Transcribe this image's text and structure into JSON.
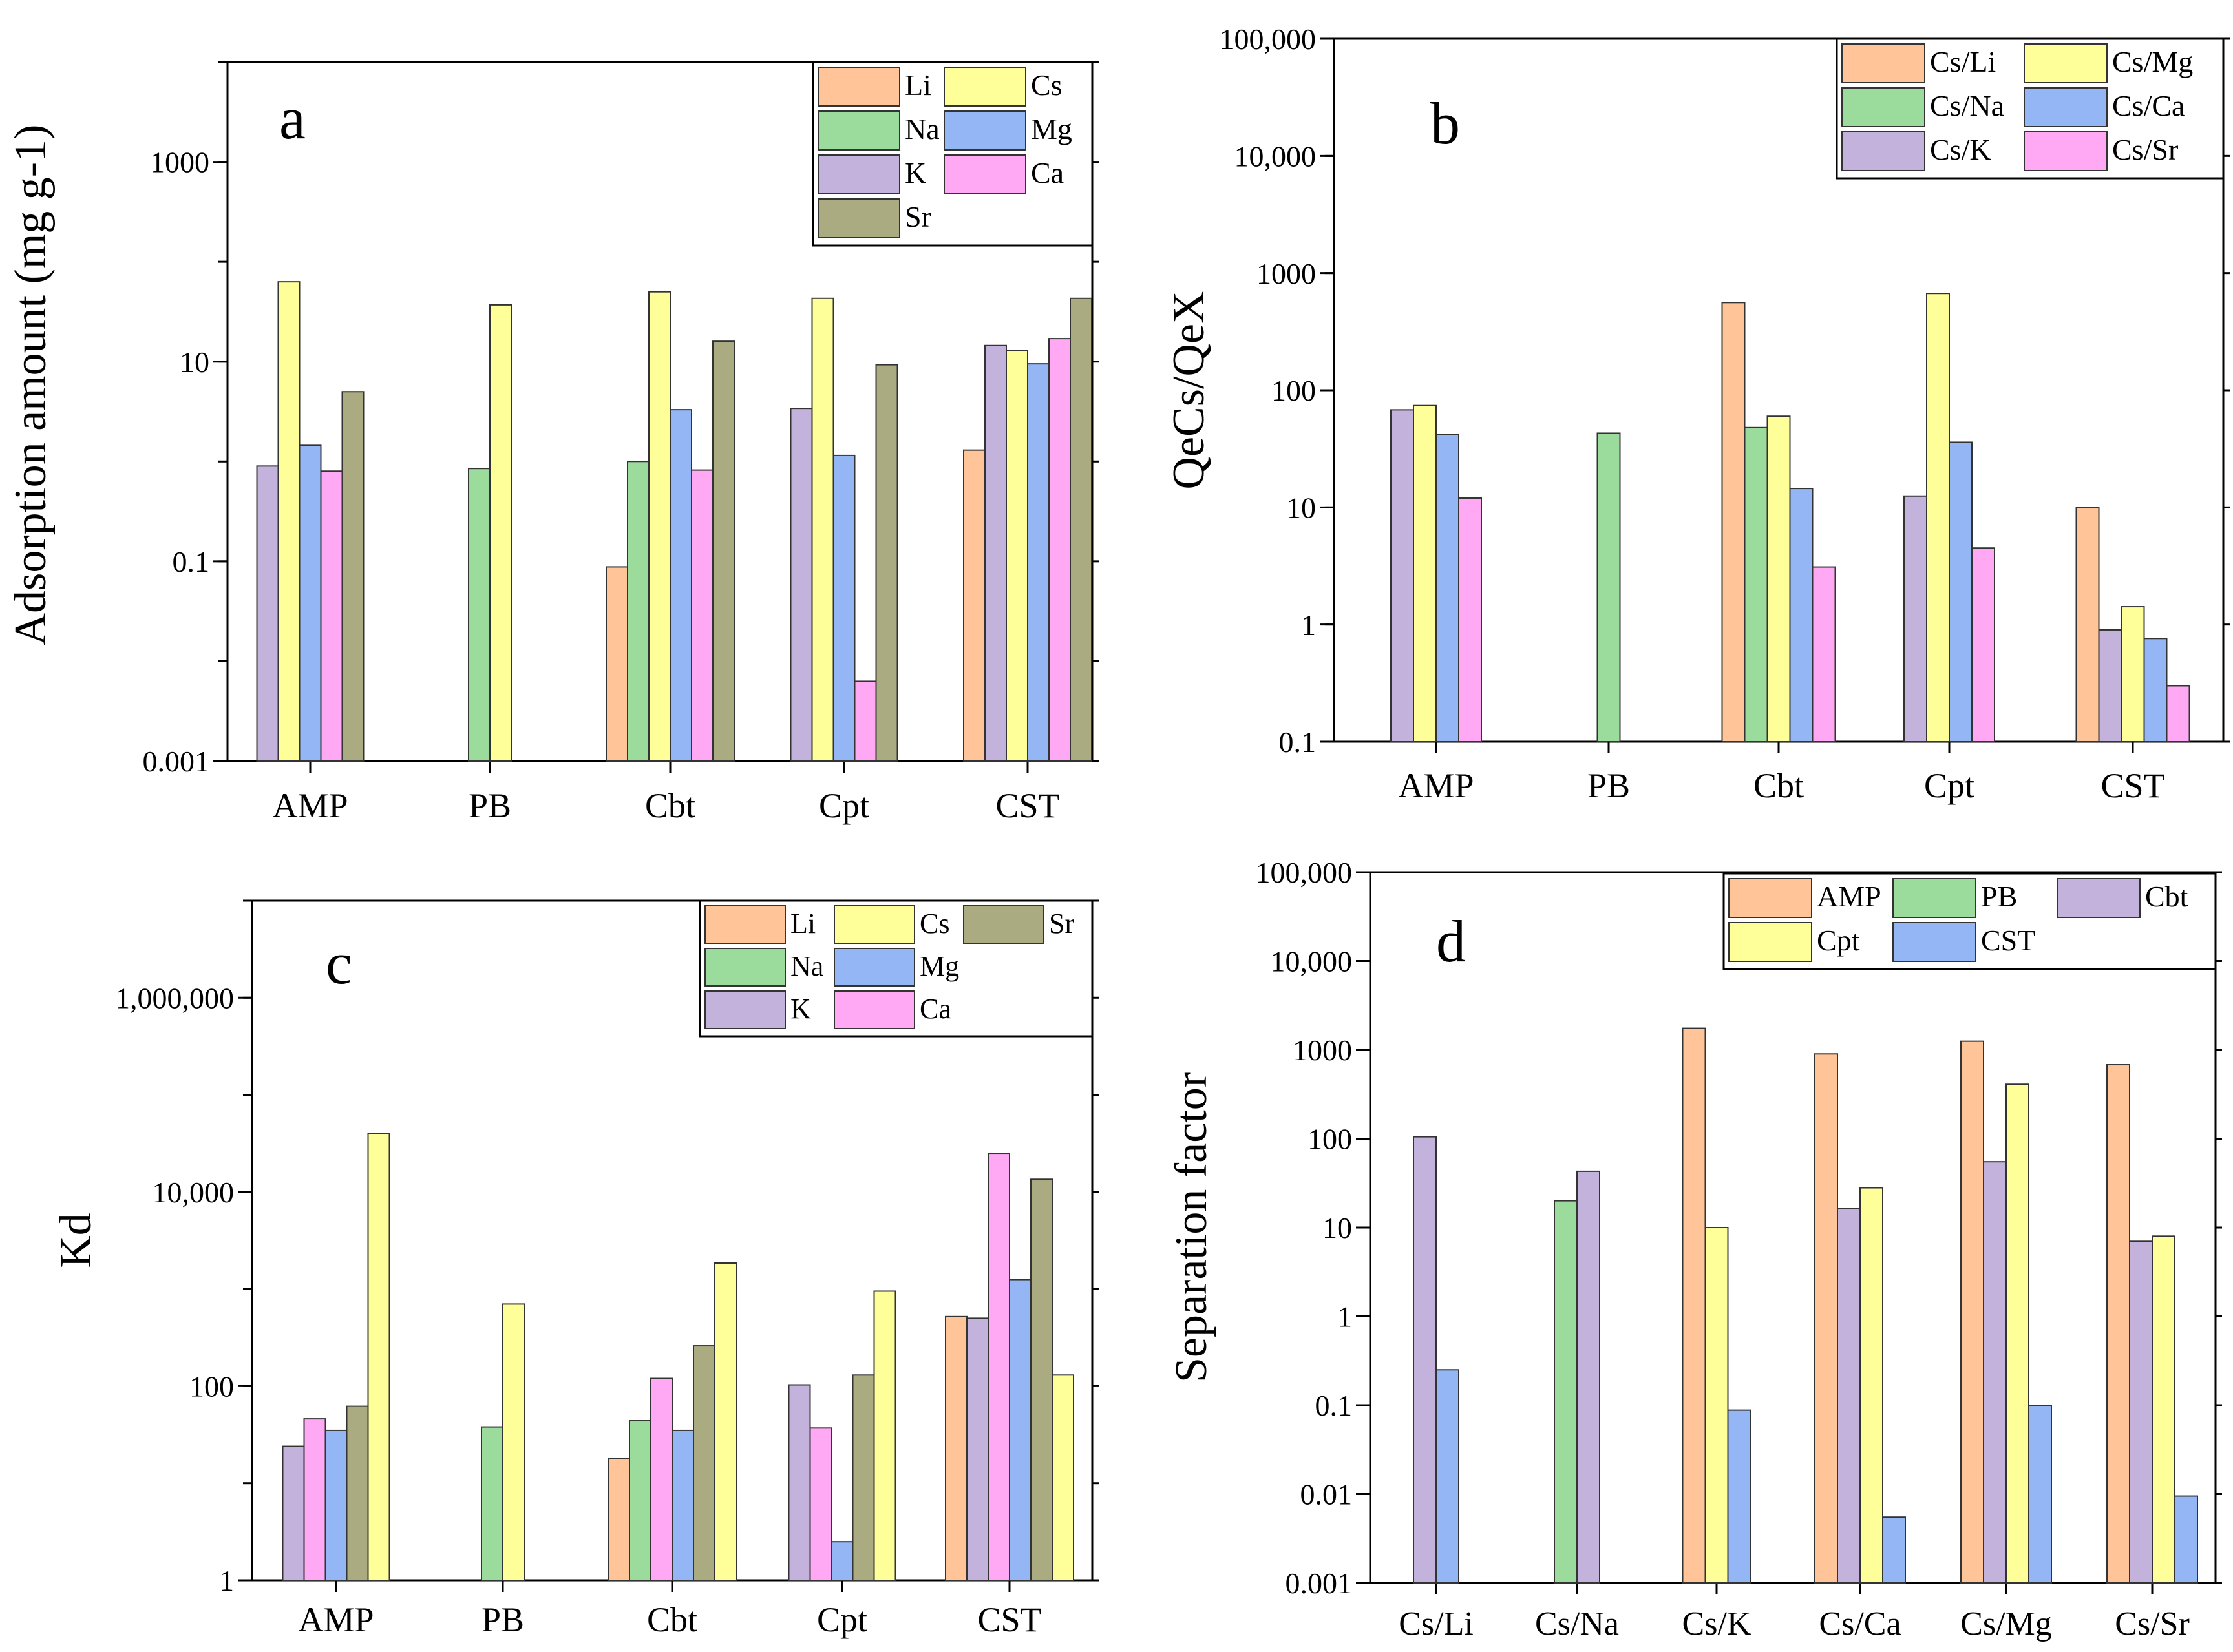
{
  "colors": {
    "Li": "#FFC598",
    "Na": "#9BDB9B",
    "K": "#C3B2DB",
    "Cs": "#FFFF99",
    "Mg": "#94B6F4",
    "Ca": "#FFA8F4",
    "Sr": "#ABAB82",
    "Cs/Li": "#FFC598",
    "Cs/Na": "#9BDB9B",
    "Cs/K": "#C3B2DB",
    "Cs/Mg": "#FFFF99",
    "Cs/Ca": "#94B6F4",
    "Cs/Sr": "#FFA8F4",
    "AMP": "#FFC598",
    "PB": "#9BDB9B",
    "Cbt": "#C3B2DB",
    "Cpt": "#FFFF99",
    "CST": "#94B6F4"
  },
  "chart_data": [
    {
      "id": "a",
      "type": "bar",
      "panel_label": "a",
      "title": "",
      "xlabel": "",
      "ylabel": "Adsorption amount (mg g-1)",
      "yscale": "log",
      "ylim": [
        0.001,
        10000
      ],
      "yticks": [
        {
          "v": 0.001,
          "label": "0.001"
        },
        {
          "v": 0.1,
          "label": "0.1"
        },
        {
          "v": 10,
          "label": "10"
        },
        {
          "v": 1000,
          "label": "1000"
        }
      ],
      "categories": [
        "AMP",
        "PB",
        "Cbt",
        "Cpt",
        "CST"
      ],
      "series": [
        {
          "name": "Li",
          "values": [
            null,
            null,
            0.088,
            null,
            1.3
          ]
        },
        {
          "name": "Na",
          "values": [
            null,
            0.85,
            1.0,
            null,
            null
          ]
        },
        {
          "name": "K",
          "values": [
            0.9,
            null,
            null,
            3.4,
            14.5
          ]
        },
        {
          "name": "Cs",
          "values": [
            63,
            37,
            50,
            43,
            13
          ]
        },
        {
          "name": "Mg",
          "values": [
            1.45,
            null,
            3.3,
            1.15,
            9.5
          ]
        },
        {
          "name": "Ca",
          "values": [
            0.8,
            null,
            0.82,
            0.0063,
            17
          ]
        },
        {
          "name": "Sr",
          "values": [
            5.0,
            null,
            16,
            9.3,
            43
          ]
        }
      ],
      "legend": {
        "placement": "top-right",
        "cols": 2,
        "entries": [
          [
            {
              "label": "Li",
              "series": "Li"
            },
            {
              "label": "Cs",
              "series": "Cs"
            }
          ],
          [
            {
              "label": "Na",
              "series": "Na"
            },
            {
              "label": "Mg",
              "series": "Mg"
            }
          ],
          [
            {
              "label": "K",
              "series": "K"
            },
            {
              "label": "Ca",
              "series": "Ca"
            }
          ],
          [
            {
              "label": "Sr",
              "series": "Sr"
            }
          ]
        ]
      }
    },
    {
      "id": "b",
      "type": "bar",
      "panel_label": "b",
      "title": "",
      "xlabel": "",
      "ylabel": "QeCs/QeX",
      "yscale": "log",
      "ylim": [
        0.1,
        100000
      ],
      "yticks": [
        {
          "v": 0.1,
          "label": "0.1"
        },
        {
          "v": 1,
          "label": "1"
        },
        {
          "v": 10,
          "label": "10"
        },
        {
          "v": 100,
          "label": "100"
        },
        {
          "v": 1000,
          "label": "1000"
        },
        {
          "v": 10000,
          "label": "10,000"
        },
        {
          "v": 100000,
          "label": "100,000"
        }
      ],
      "categories": [
        "AMP",
        "PB",
        "Cbt",
        "Cpt",
        "CST"
      ],
      "series": [
        {
          "name": "Cs/Li",
          "values": [
            null,
            null,
            560,
            null,
            10
          ]
        },
        {
          "name": "Cs/Na",
          "values": [
            null,
            43,
            48,
            null,
            null
          ]
        },
        {
          "name": "Cs/K",
          "values": [
            68,
            null,
            null,
            12.5,
            0.9
          ]
        },
        {
          "name": "Cs/Mg",
          "values": [
            74,
            null,
            60,
            670,
            1.42
          ]
        },
        {
          "name": "Cs/Ca",
          "values": [
            42,
            null,
            14.5,
            36,
            0.76
          ]
        },
        {
          "name": "Cs/Sr",
          "values": [
            12,
            null,
            3.1,
            4.5,
            0.3
          ]
        }
      ],
      "legend": {
        "placement": "top-right",
        "cols": 2,
        "entries": [
          [
            {
              "label": "Cs/Li",
              "series": "Cs/Li"
            },
            {
              "label": "Cs/Mg",
              "series": "Cs/Mg"
            }
          ],
          [
            {
              "label": "Cs/Na",
              "series": "Cs/Na"
            },
            {
              "label": "Cs/Ca",
              "series": "Cs/Ca"
            }
          ],
          [
            {
              "label": "Cs/K",
              "series": "Cs/K"
            },
            {
              "label": "Cs/Sr",
              "series": "Cs/Sr"
            }
          ]
        ]
      }
    },
    {
      "id": "c",
      "type": "bar",
      "panel_label": "c",
      "title": "",
      "xlabel": "",
      "ylabel": "Kd",
      "yscale": "log",
      "ylim": [
        1,
        10000000
      ],
      "yticks": [
        {
          "v": 1,
          "label": "1"
        },
        {
          "v": 100,
          "label": "100"
        },
        {
          "v": 10000,
          "label": "10,000"
        },
        {
          "v": 1000000,
          "label": "1,000,000"
        }
      ],
      "categories": [
        "AMP",
        "PB",
        "Cbt",
        "Cpt",
        "CST"
      ],
      "series": [
        {
          "name": "Li",
          "values": [
            null,
            null,
            18,
            null,
            520
          ]
        },
        {
          "name": "Na",
          "values": [
            null,
            38,
            44,
            null,
            null
          ]
        },
        {
          "name": "K",
          "values": [
            24,
            null,
            null,
            103,
            500
          ]
        },
        {
          "name": "Ca",
          "values": [
            46,
            null,
            120,
            37,
            25000
          ]
        },
        {
          "name": "Mg",
          "values": [
            35,
            null,
            35,
            2.5,
            1250
          ]
        },
        {
          "name": "Sr",
          "values": [
            62,
            null,
            260,
            130,
            13500
          ]
        },
        {
          "name": "Cs",
          "values": [
            40000,
            700,
            1850,
            950,
            130
          ]
        }
      ],
      "legend": {
        "placement": "top-right",
        "cols": 3,
        "entries": [
          [
            {
              "label": "Li",
              "series": "Li"
            },
            {
              "label": "Cs",
              "series": "Cs"
            },
            {
              "label": "Sr",
              "series": "Sr"
            }
          ],
          [
            {
              "label": "Na",
              "series": "Na"
            },
            {
              "label": "Mg",
              "series": "Mg"
            }
          ],
          [
            {
              "label": "K",
              "series": "K"
            },
            {
              "label": "Ca",
              "series": "Ca"
            }
          ]
        ]
      }
    },
    {
      "id": "d",
      "type": "bar",
      "panel_label": "d",
      "title": "",
      "xlabel": "",
      "ylabel": "Separation factor",
      "yscale": "log",
      "ylim": [
        0.001,
        100000
      ],
      "yticks": [
        {
          "v": 0.001,
          "label": "0.001"
        },
        {
          "v": 0.01,
          "label": "0.01"
        },
        {
          "v": 0.1,
          "label": "0.1"
        },
        {
          "v": 1,
          "label": "1"
        },
        {
          "v": 10,
          "label": "10"
        },
        {
          "v": 100,
          "label": "100"
        },
        {
          "v": 1000,
          "label": "1000"
        },
        {
          "v": 10000,
          "label": "10,000"
        },
        {
          "v": 100000,
          "label": "100,000"
        }
      ],
      "categories": [
        "Cs/Li",
        "Cs/Na",
        "Cs/K",
        "Cs/Ca",
        "Cs/Mg",
        "Cs/Sr"
      ],
      "series": [
        {
          "name": "AMP",
          "values": [
            null,
            null,
            1750,
            900,
            1250,
            680
          ]
        },
        {
          "name": "PB",
          "values": [
            null,
            20,
            null,
            null,
            null,
            null
          ]
        },
        {
          "name": "Cbt",
          "values": [
            105,
            43,
            null,
            16.5,
            55,
            7
          ]
        },
        {
          "name": "Cpt",
          "values": [
            null,
            null,
            10,
            28,
            410,
            8
          ]
        },
        {
          "name": "CST",
          "values": [
            0.25,
            null,
            0.088,
            0.0055,
            0.1,
            0.0095
          ]
        }
      ],
      "legend": {
        "placement": "top-right",
        "cols": 3,
        "entries": [
          [
            {
              "label": "AMP",
              "series": "AMP"
            },
            {
              "label": "PB",
              "series": "PB"
            },
            {
              "label": "Cbt",
              "series": "Cbt"
            }
          ],
          [
            {
              "label": "Cpt",
              "series": "Cpt"
            },
            {
              "label": "CST",
              "series": "CST"
            }
          ]
        ]
      }
    }
  ]
}
